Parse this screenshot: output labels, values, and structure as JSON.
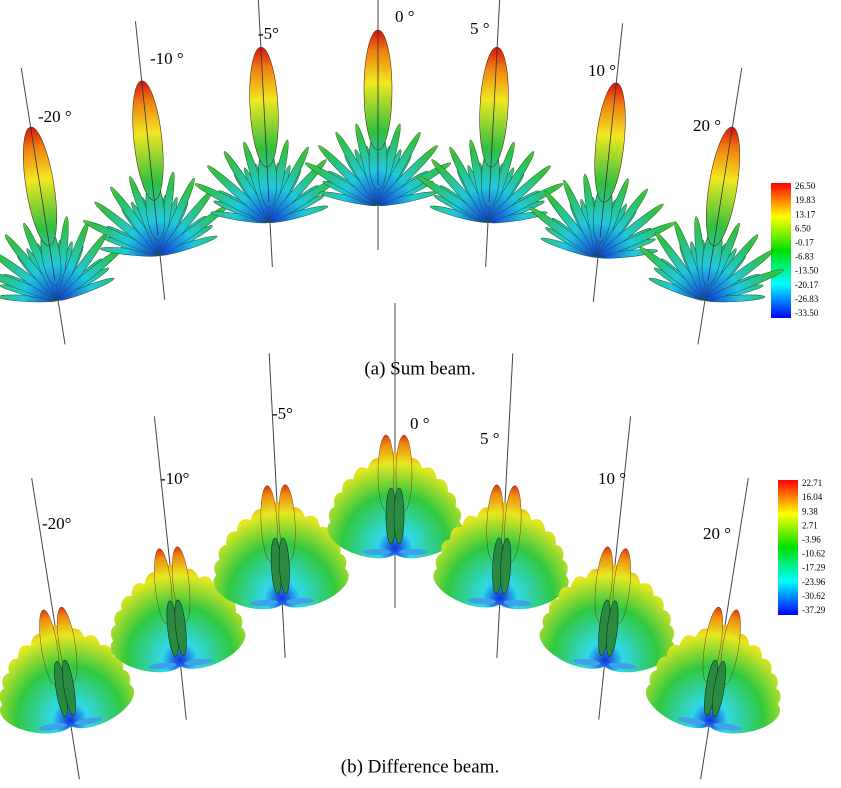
{
  "panels": [
    {
      "caption": "(a)   Sum beam.",
      "beam_labels": [
        "-20 °",
        "-10 °",
        "-5°",
        "0 °",
        "5 °",
        "10 °",
        "20 °"
      ],
      "colorbar_labels": [
        "26.50",
        "19.83",
        "13.17",
        "6.50",
        "-0.17",
        "-6.83",
        "-13.50",
        "-20.17",
        "-26.83",
        "-33.50"
      ]
    },
    {
      "caption": "(b)   Difference beam.",
      "beam_labels": [
        "-20°",
        "-10°",
        "-5°",
        "0 °",
        "5 °",
        "10 °",
        "20 °"
      ],
      "colorbar_labels": [
        "22.71",
        "16.04",
        "9.38",
        "2.71",
        "-3.96",
        "-10.62",
        "-17.29",
        "-23.96",
        "-30.62",
        "-37.29"
      ]
    }
  ]
}
